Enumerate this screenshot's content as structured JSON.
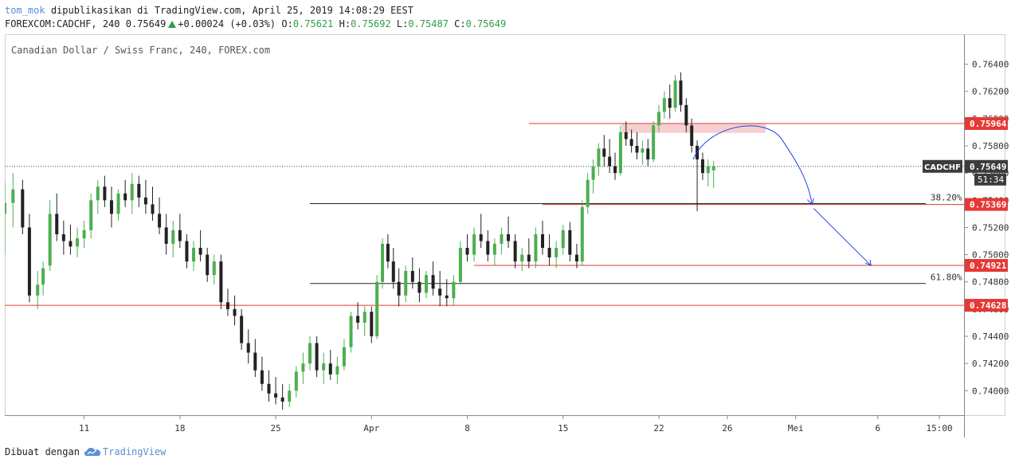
{
  "header": {
    "user": "tom_mok",
    "published": "dipublikasikan di TradingView.com, April 25, 2019 14:08:29 EEST",
    "symbol_line": "FOREXCOM:CADCHF, 240 0.75649",
    "change": "+0.00024 (+0.03%)",
    "o_label": "O:",
    "o_value": "0.75621",
    "h_label": "H:",
    "h_value": "0.75692",
    "l_label": "L:",
    "l_value": "0.75487",
    "c_label": "C:",
    "c_value": "0.75649"
  },
  "colors": {
    "up": "#4caf50",
    "down": "#222222",
    "level": "#e53935",
    "fib": "#222222",
    "arrow": "#1e40e6",
    "zone": "#f4c7c7",
    "grid": "#e8e8e8",
    "tag_dark": "#3c3c3c"
  },
  "chart_data": {
    "type": "candlestick",
    "title": "Canadian Dollar / Swiss Franc, 240, FOREX.com",
    "symbol": "CADCHF",
    "ylim": [
      0.7382,
      0.7662
    ],
    "y_ticks": [
      "0.76400",
      "0.76200",
      "0.76000",
      "0.75800",
      "0.75600",
      "0.75400",
      "0.75200",
      "0.75000",
      "0.74800",
      "0.74600",
      "0.74400",
      "0.74200",
      "0.74000"
    ],
    "x_ticks": [
      {
        "label": "11",
        "day": 11
      },
      {
        "label": "18",
        "day": 18
      },
      {
        "label": "25",
        "day": 25
      },
      {
        "label": "Apr",
        "day": 32
      },
      {
        "label": "8",
        "day": 39
      },
      {
        "label": "15",
        "day": 46
      },
      {
        "label": "22",
        "day": 53
      },
      {
        "label": "26",
        "day": 58
      },
      {
        "label": "Mei",
        "day": 63
      },
      {
        "label": "6",
        "day": 69
      },
      {
        "label": "15:00",
        "day": 73.5
      }
    ],
    "x_range_days": [
      5.2,
      75.3
    ],
    "last_price": {
      "value": 0.75649,
      "label": "CADCHF",
      "value_label": "0.75649",
      "countdown": "51:34"
    },
    "levels": [
      {
        "value": 0.75964,
        "label": "0.75964",
        "from_day": 43.5
      },
      {
        "value": 0.75369,
        "label": "0.75369",
        "from_day": 44.5
      },
      {
        "value": 0.74921,
        "label": "0.74921",
        "from_day": 39.5
      },
      {
        "value": 0.74628,
        "label": "0.74628",
        "from_day": 5.2
      }
    ],
    "fib_levels": [
      {
        "value": 0.75375,
        "label": "38.20%",
        "from_day": 27.5,
        "to_day": 72.5
      },
      {
        "value": 0.74788,
        "label": "61.80%",
        "from_day": 27.5,
        "to_day": 72.5
      }
    ],
    "zone": {
      "from_day": 50.3,
      "to_day": 60.8,
      "top": 0.75964,
      "bottom": 0.75895
    },
    "projection": {
      "arc_start": {
        "day": 55.5,
        "value": 0.757
      },
      "arc_peak": {
        "day": 58.5,
        "value": 0.75905
      },
      "arc_end": {
        "day": 64.2,
        "value": 0.75369
      },
      "line_end": {
        "day": 68.5,
        "value": 0.74921
      }
    },
    "candles": [
      [
        5.2,
        0.753,
        0.7553,
        0.75,
        0.7538
      ],
      [
        5.8,
        0.7538,
        0.756,
        0.752,
        0.7548
      ],
      [
        6.5,
        0.7548,
        0.7555,
        0.7515,
        0.752
      ],
      [
        7.0,
        0.752,
        0.753,
        0.7465,
        0.747
      ],
      [
        7.6,
        0.747,
        0.7488,
        0.746,
        0.7478
      ],
      [
        8.0,
        0.7478,
        0.7495,
        0.747,
        0.749
      ],
      [
        8.5,
        0.7492,
        0.754,
        0.7488,
        0.753
      ],
      [
        9.0,
        0.753,
        0.7545,
        0.751,
        0.7515
      ],
      [
        9.5,
        0.7515,
        0.7525,
        0.75,
        0.751
      ],
      [
        10.0,
        0.751,
        0.7522,
        0.75,
        0.7506
      ],
      [
        10.5,
        0.7506,
        0.752,
        0.7498,
        0.7512
      ],
      [
        11.0,
        0.7512,
        0.7525,
        0.7505,
        0.7518
      ],
      [
        11.5,
        0.7518,
        0.7545,
        0.7512,
        0.754
      ],
      [
        12.0,
        0.754,
        0.7555,
        0.753,
        0.755
      ],
      [
        12.5,
        0.755,
        0.7558,
        0.7535,
        0.754
      ],
      [
        13.0,
        0.754,
        0.755,
        0.752,
        0.753
      ],
      [
        13.5,
        0.753,
        0.7548,
        0.7525,
        0.7545
      ],
      [
        14.0,
        0.7545,
        0.7555,
        0.7535,
        0.754
      ],
      [
        14.5,
        0.754,
        0.756,
        0.753,
        0.7552
      ],
      [
        15.0,
        0.7552,
        0.7558,
        0.7535,
        0.7542
      ],
      [
        15.5,
        0.7542,
        0.7555,
        0.753,
        0.7537
      ],
      [
        16.0,
        0.7537,
        0.755,
        0.7525,
        0.753
      ],
      [
        16.5,
        0.753,
        0.7542,
        0.7515,
        0.752
      ],
      [
        17.0,
        0.752,
        0.753,
        0.75,
        0.7508
      ],
      [
        17.5,
        0.7508,
        0.7525,
        0.7498,
        0.7518
      ],
      [
        18.0,
        0.7518,
        0.753,
        0.7505,
        0.751
      ],
      [
        18.5,
        0.751,
        0.7515,
        0.749,
        0.7495
      ],
      [
        19.0,
        0.7495,
        0.751,
        0.7488,
        0.7505
      ],
      [
        19.5,
        0.7505,
        0.7518,
        0.7495,
        0.75
      ],
      [
        20.0,
        0.75,
        0.7505,
        0.748,
        0.7485
      ],
      [
        20.5,
        0.7485,
        0.75,
        0.7478,
        0.7495
      ],
      [
        21.0,
        0.7495,
        0.75,
        0.746,
        0.7465
      ],
      [
        21.5,
        0.7465,
        0.7475,
        0.7455,
        0.746
      ],
      [
        22.0,
        0.746,
        0.747,
        0.7448,
        0.7455
      ],
      [
        22.5,
        0.7455,
        0.746,
        0.743,
        0.7435
      ],
      [
        23.0,
        0.7435,
        0.7445,
        0.742,
        0.7428
      ],
      [
        23.5,
        0.7428,
        0.7438,
        0.741,
        0.7415
      ],
      [
        24.0,
        0.7415,
        0.7425,
        0.74,
        0.7405
      ],
      [
        24.5,
        0.7405,
        0.7415,
        0.7392,
        0.7398
      ],
      [
        25.0,
        0.7398,
        0.741,
        0.739,
        0.7395
      ],
      [
        25.5,
        0.7395,
        0.7405,
        0.7386,
        0.7392
      ],
      [
        26.0,
        0.7392,
        0.7405,
        0.7388,
        0.74
      ],
      [
        26.5,
        0.74,
        0.7418,
        0.7395,
        0.7414
      ],
      [
        27.0,
        0.7414,
        0.7428,
        0.7405,
        0.742
      ],
      [
        27.5,
        0.742,
        0.744,
        0.7415,
        0.7435
      ],
      [
        28.0,
        0.7435,
        0.744,
        0.741,
        0.7415
      ],
      [
        28.5,
        0.7415,
        0.7428,
        0.7405,
        0.742
      ],
      [
        29.0,
        0.742,
        0.743,
        0.7408,
        0.7412
      ],
      [
        29.5,
        0.7412,
        0.7425,
        0.7405,
        0.7418
      ],
      [
        30.0,
        0.7418,
        0.7438,
        0.7415,
        0.7432
      ],
      [
        30.5,
        0.7432,
        0.7458,
        0.7428,
        0.7455
      ],
      [
        31.0,
        0.7455,
        0.7465,
        0.7445,
        0.745
      ],
      [
        31.5,
        0.745,
        0.7462,
        0.744,
        0.7458
      ],
      [
        32.0,
        0.7458,
        0.7462,
        0.7435,
        0.744
      ],
      [
        32.4,
        0.744,
        0.7485,
        0.7438,
        0.748
      ],
      [
        32.8,
        0.748,
        0.7512,
        0.7475,
        0.7508
      ],
      [
        33.2,
        0.7508,
        0.7515,
        0.749,
        0.7495
      ],
      [
        33.6,
        0.7495,
        0.7505,
        0.7475,
        0.748
      ],
      [
        34.0,
        0.748,
        0.749,
        0.7462,
        0.747
      ],
      [
        34.5,
        0.747,
        0.7492,
        0.7465,
        0.7488
      ],
      [
        35.0,
        0.7488,
        0.7498,
        0.7475,
        0.748
      ],
      [
        35.5,
        0.748,
        0.749,
        0.7465,
        0.7472
      ],
      [
        36.0,
        0.7472,
        0.7488,
        0.7468,
        0.7485
      ],
      [
        36.5,
        0.7485,
        0.7495,
        0.747,
        0.7475
      ],
      [
        37.0,
        0.7475,
        0.7488,
        0.7462,
        0.747
      ],
      [
        37.5,
        0.747,
        0.7482,
        0.7462,
        0.7468
      ],
      [
        38.0,
        0.7468,
        0.7485,
        0.7463,
        0.748
      ],
      [
        38.5,
        0.748,
        0.751,
        0.7478,
        0.7505
      ],
      [
        39.0,
        0.7505,
        0.7515,
        0.7495,
        0.75
      ],
      [
        39.5,
        0.75,
        0.752,
        0.7495,
        0.7515
      ],
      [
        40.0,
        0.7515,
        0.753,
        0.7505,
        0.751
      ],
      [
        40.5,
        0.751,
        0.7518,
        0.7495,
        0.75
      ],
      [
        41.0,
        0.75,
        0.7512,
        0.7492,
        0.7508
      ],
      [
        41.5,
        0.7508,
        0.752,
        0.75,
        0.7515
      ],
      [
        42.0,
        0.7515,
        0.7528,
        0.7505,
        0.751
      ],
      [
        42.5,
        0.751,
        0.7515,
        0.749,
        0.7495
      ],
      [
        43.0,
        0.7495,
        0.7505,
        0.7488,
        0.75
      ],
      [
        43.5,
        0.75,
        0.7512,
        0.749,
        0.7495
      ],
      [
        44.0,
        0.7495,
        0.752,
        0.749,
        0.7515
      ],
      [
        44.5,
        0.7515,
        0.7525,
        0.75,
        0.7505
      ],
      [
        45.0,
        0.7505,
        0.7515,
        0.7492,
        0.7498
      ],
      [
        45.5,
        0.7498,
        0.751,
        0.749,
        0.7505
      ],
      [
        46.0,
        0.7505,
        0.7522,
        0.75,
        0.7518
      ],
      [
        46.5,
        0.7518,
        0.7524,
        0.7495,
        0.75
      ],
      [
        47.0,
        0.75,
        0.7508,
        0.749,
        0.7495
      ],
      [
        47.4,
        0.7495,
        0.754,
        0.7492,
        0.7535
      ],
      [
        47.8,
        0.7535,
        0.756,
        0.753,
        0.7555
      ],
      [
        48.2,
        0.7555,
        0.757,
        0.7545,
        0.7565
      ],
      [
        48.6,
        0.7565,
        0.7582,
        0.7558,
        0.7578
      ],
      [
        49.0,
        0.7578,
        0.7588,
        0.7565,
        0.7572
      ],
      [
        49.4,
        0.7572,
        0.7585,
        0.756,
        0.7565
      ],
      [
        49.8,
        0.7565,
        0.7575,
        0.7555,
        0.756
      ],
      [
        50.2,
        0.756,
        0.7595,
        0.7558,
        0.759
      ],
      [
        50.6,
        0.759,
        0.7598,
        0.758,
        0.7585
      ],
      [
        51.0,
        0.7585,
        0.7592,
        0.7575,
        0.758
      ],
      [
        51.4,
        0.758,
        0.759,
        0.757,
        0.7575
      ],
      [
        51.8,
        0.7575,
        0.7584,
        0.7566,
        0.7578
      ],
      [
        52.2,
        0.7578,
        0.7585,
        0.7565,
        0.757
      ],
      [
        52.6,
        0.757,
        0.7598,
        0.7568,
        0.7595
      ],
      [
        53.0,
        0.7595,
        0.761,
        0.759,
        0.7605
      ],
      [
        53.4,
        0.7605,
        0.762,
        0.76,
        0.7615
      ],
      [
        53.8,
        0.7615,
        0.7625,
        0.76,
        0.7608
      ],
      [
        54.2,
        0.7608,
        0.7632,
        0.7605,
        0.7628
      ],
      [
        54.6,
        0.7628,
        0.7634,
        0.7605,
        0.761
      ],
      [
        55.0,
        0.761,
        0.7615,
        0.759,
        0.7595
      ],
      [
        55.4,
        0.7595,
        0.76,
        0.7575,
        0.758
      ],
      [
        55.8,
        0.758,
        0.7584,
        0.7532,
        0.757
      ],
      [
        56.2,
        0.757,
        0.7575,
        0.7555,
        0.756
      ],
      [
        56.6,
        0.756,
        0.757,
        0.755,
        0.7565
      ],
      [
        57.0,
        0.7562,
        0.7569,
        0.7549,
        0.7565
      ]
    ]
  },
  "footer": {
    "made_with": "Dibuat dengan",
    "brand": "TradingView"
  }
}
